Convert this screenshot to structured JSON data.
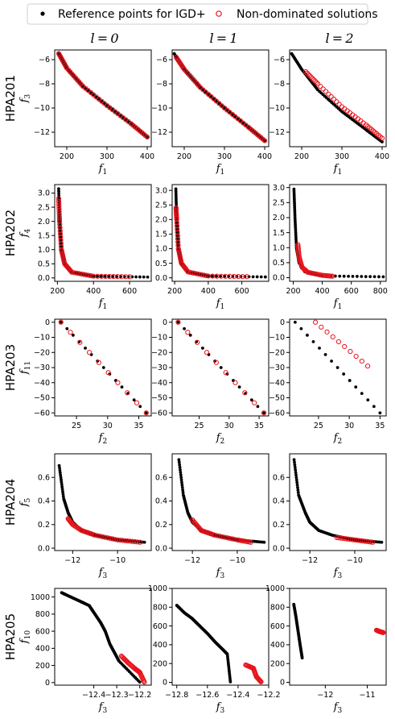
{
  "legend": {
    "items": [
      {
        "label": "Reference points for IGD+",
        "marker": "filled",
        "color": "#000000"
      },
      {
        "label": "Non-dominated solutions",
        "marker": "open",
        "color": "#e8141c"
      }
    ],
    "placement": "top-center"
  },
  "column_headers": [
    "l = 0",
    "l = 1",
    "l = 2"
  ],
  "colors": {
    "reference": "#000000",
    "solutions": "#e8141c"
  },
  "chart_data": [
    {
      "type": "scatter",
      "problem": "HPA201",
      "xlabel": "f1",
      "ylabel": "f3",
      "grid": false,
      "panels": [
        {
          "col": 0,
          "xlim": [
            170,
            410
          ],
          "ylim": [
            -13.2,
            -5.2
          ],
          "xticks": [
            200,
            300,
            400
          ],
          "yticks": [
            -6,
            -8,
            -10,
            -12
          ],
          "reference": {
            "x": [
              180,
              200,
              240,
              300,
              360,
              400
            ],
            "y": [
              -5.5,
              -6.7,
              -8.2,
              -9.8,
              -11.3,
              -12.4
            ]
          },
          "solutions": {
            "x": [
              180,
              200,
              240,
              300,
              360,
              400
            ],
            "y": [
              -5.5,
              -6.7,
              -8.2,
              -9.8,
              -11.3,
              -12.4
            ]
          }
        },
        {
          "col": 1,
          "xlim": [
            170,
            410
          ],
          "ylim": [
            -13.2,
            -5.2
          ],
          "xticks": [
            200,
            300,
            400
          ],
          "yticks": [
            -6,
            -8,
            -10,
            -12
          ],
          "reference": {
            "x": [
              175,
              200,
              240,
              300,
              360,
              400
            ],
            "y": [
              -5.5,
              -6.8,
              -8.3,
              -10.0,
              -11.6,
              -12.7
            ]
          },
          "solutions": {
            "x": [
              180,
              200,
              240,
              300,
              360,
              400
            ],
            "y": [
              -5.8,
              -6.8,
              -8.3,
              -10.0,
              -11.6,
              -12.7
            ]
          }
        },
        {
          "col": 2,
          "xlim": [
            170,
            410
          ],
          "ylim": [
            -13.2,
            -5.2
          ],
          "xticks": [
            200,
            300,
            400
          ],
          "yticks": [
            -6,
            -8,
            -10,
            -12
          ],
          "reference": {
            "x": [
              175,
              200,
              240,
              300,
              360,
              400
            ],
            "y": [
              -5.5,
              -6.8,
              -8.5,
              -10.3,
              -11.8,
              -12.8
            ]
          },
          "solutions": {
            "x": [
              210,
              240,
              300,
              360,
              400
            ],
            "y": [
              -7.0,
              -8.0,
              -9.9,
              -11.4,
              -12.5
            ]
          }
        }
      ]
    },
    {
      "type": "scatter",
      "problem": "HPA202",
      "xlabel": "f1",
      "ylabel": "f4",
      "grid": false,
      "panels": [
        {
          "col": 0,
          "xlim": [
            185,
            720
          ],
          "ylim": [
            -0.12,
            3.3
          ],
          "xticks": [
            200,
            400,
            600
          ],
          "yticks": [
            0.0,
            0.5,
            1.0,
            1.5,
            2.0,
            2.5,
            3.0
          ],
          "reference": {
            "x": [
              207,
              212,
              222,
              240,
              280,
              400,
              700
            ],
            "y": [
              3.15,
              2.0,
              1.0,
              0.5,
              0.2,
              0.06,
              0.03
            ]
          },
          "solutions": {
            "x": [
              207,
              212,
              222,
              240,
              280,
              400,
              600
            ],
            "y": [
              2.8,
              2.0,
              1.0,
              0.5,
              0.2,
              0.06,
              0.04
            ]
          }
        },
        {
          "col": 1,
          "xlim": [
            185,
            760
          ],
          "ylim": [
            -0.12,
            3.2
          ],
          "xticks": [
            200,
            400,
            600
          ],
          "yticks": [
            0.0,
            0.5,
            1.0,
            1.5,
            2.0,
            2.5,
            3.0
          ],
          "reference": {
            "x": [
              207,
              212,
              222,
              240,
              280,
              400,
              740
            ],
            "y": [
              3.05,
              2.0,
              1.0,
              0.5,
              0.2,
              0.06,
              0.03
            ]
          },
          "solutions": {
            "x": [
              208,
              212,
              222,
              240,
              280,
              400,
              630
            ],
            "y": [
              2.4,
              2.0,
              1.0,
              0.5,
              0.2,
              0.06,
              0.04
            ]
          }
        },
        {
          "col": 2,
          "xlim": [
            175,
            840
          ],
          "ylim": [
            -0.12,
            3.1
          ],
          "xticks": [
            200,
            400,
            600,
            800
          ],
          "yticks": [
            0.0,
            0.5,
            1.0,
            1.5,
            2.0,
            2.5,
            3.0
          ],
          "reference": {
            "x": [
              205,
              212,
              222,
              240,
              280,
              400,
              820
            ],
            "y": [
              2.95,
              2.0,
              1.0,
              0.5,
              0.2,
              0.06,
              0.03
            ]
          },
          "solutions": {
            "x": [
              232,
              240,
              260,
              300,
              400,
              470
            ],
            "y": [
              1.1,
              0.7,
              0.35,
              0.18,
              0.08,
              0.05
            ]
          }
        }
      ]
    },
    {
      "type": "scatter",
      "problem": "HPA203",
      "xlabel": "f2",
      "ylabel": "f11",
      "grid": false,
      "panels": [
        {
          "col": 0,
          "xlim": [
            21.5,
            37
          ],
          "ylim": [
            -62,
            2
          ],
          "xticks": [
            25,
            30,
            35
          ],
          "yticks": [
            0,
            -10,
            -20,
            -30,
            -40,
            -50,
            -60
          ],
          "reference": {
            "x": [
              22.5,
              36.2
            ],
            "y": [
              0,
              -60
            ]
          },
          "solutions": {
            "x": [
              22.5,
              36.2
            ],
            "y": [
              0,
              -60
            ]
          }
        },
        {
          "col": 1,
          "xlim": [
            20.5,
            36.6
          ],
          "ylim": [
            -62,
            2
          ],
          "xticks": [
            25,
            30,
            35
          ],
          "yticks": [
            0,
            -10,
            -20,
            -30,
            -40,
            -50,
            -60
          ],
          "reference": {
            "x": [
              21.5,
              35.8
            ],
            "y": [
              0,
              -60
            ]
          },
          "solutions": {
            "x": [
              21.5,
              35.8
            ],
            "y": [
              0,
              -60
            ]
          }
        },
        {
          "col": 2,
          "xlim": [
            20.3,
            36
          ],
          "ylim": [
            -62,
            2
          ],
          "xticks": [
            25,
            30,
            35
          ],
          "yticks": [
            0,
            -10,
            -20,
            -30,
            -40,
            -50,
            -60
          ],
          "reference": {
            "x": [
              21.2,
              35.0
            ],
            "y": [
              0,
              -60
            ]
          },
          "solutions": {
            "x": [
              24.5,
              33.0
            ],
            "y": [
              0,
              -29
            ]
          }
        }
      ]
    },
    {
      "type": "scatter",
      "problem": "HPA204",
      "xlabel": "f3",
      "ylabel": "f5",
      "grid": false,
      "panels": [
        {
          "col": 0,
          "xlim": [
            -12.8,
            -8.5
          ],
          "ylim": [
            -0.02,
            0.8
          ],
          "xticks": [
            -12,
            -10
          ],
          "yticks": [
            0.0,
            0.2,
            0.4,
            0.6
          ],
          "reference": {
            "x": [
              -12.6,
              -12.4,
              -12.2,
              -12.0,
              -11.6,
              -11.0,
              -10.0,
              -8.8
            ],
            "y": [
              0.7,
              0.42,
              0.3,
              0.22,
              0.15,
              0.11,
              0.07,
              0.05
            ]
          },
          "solutions": {
            "x": [
              -12.2,
              -12.0,
              -11.6,
              -11.0,
              -10.0,
              -9.0
            ],
            "y": [
              0.25,
              0.2,
              0.15,
              0.11,
              0.07,
              0.05
            ]
          }
        },
        {
          "col": 1,
          "xlim": [
            -12.9,
            -8.6
          ],
          "ylim": [
            -0.02,
            0.8
          ],
          "xticks": [
            -12,
            -10
          ],
          "yticks": [
            0.0,
            0.2,
            0.4,
            0.6
          ],
          "reference": {
            "x": [
              -12.6,
              -12.4,
              -12.2,
              -12.0,
              -11.6,
              -11.0,
              -10.0,
              -8.8
            ],
            "y": [
              0.75,
              0.45,
              0.3,
              0.22,
              0.15,
              0.11,
              0.07,
              0.05
            ]
          },
          "solutions": {
            "x": [
              -12.0,
              -11.6,
              -11.0,
              -10.0,
              -9.4
            ],
            "y": [
              0.24,
              0.15,
              0.11,
              0.07,
              0.05
            ]
          }
        },
        {
          "col": 2,
          "xlim": [
            -12.9,
            -8.6
          ],
          "ylim": [
            -0.02,
            0.8
          ],
          "xticks": [
            -12,
            -10
          ],
          "yticks": [
            0.0,
            0.2,
            0.4,
            0.6
          ],
          "reference": {
            "x": [
              -12.7,
              -12.5,
              -12.2,
              -12.0,
              -11.6,
              -11.0,
              -10.0,
              -8.8
            ],
            "y": [
              0.75,
              0.45,
              0.3,
              0.22,
              0.15,
              0.11,
              0.07,
              0.05
            ]
          },
          "solutions": {
            "x": [
              -10.8,
              -10.0,
              -9.2
            ],
            "y": [
              0.09,
              0.07,
              0.05
            ]
          }
        }
      ]
    },
    {
      "type": "scatter",
      "problem": "HPA205",
      "xlabel": "f3",
      "ylabel": "f10",
      "grid": false,
      "panels": [
        {
          "col": 0,
          "xlim": [
            -12.57,
            -12.15
          ],
          "ylim": [
            -30,
            1100
          ],
          "xticks": [
            -12.4,
            -12.3,
            -12.2
          ],
          "yticks": [
            0,
            200,
            400,
            600,
            800,
            1000
          ],
          "reference": {
            "x": [
              -12.54,
              -12.5,
              -12.46,
              -12.42,
              -12.4,
              -12.37,
              -12.35,
              -12.33,
              -12.31,
              -12.29,
              -12.2
            ],
            "y": [
              1050,
              1000,
              950,
              900,
              820,
              700,
              600,
              450,
              350,
              250,
              5
            ]
          },
          "solutions": {
            "x": [
              -12.28,
              -12.25,
              -12.22,
              -12.2,
              -12.18
            ],
            "y": [
              310,
              230,
              160,
              120,
              5
            ]
          }
        },
        {
          "col": 1,
          "xlim": [
            -12.83,
            -12.2
          ],
          "ylim": [
            -30,
            1000
          ],
          "xticks": [
            -12.8,
            -12.6,
            -12.4,
            -12.2
          ],
          "yticks": [
            0,
            200,
            400,
            600,
            800,
            1000
          ],
          "reference": {
            "x": [
              -12.8,
              -12.75,
              -12.7,
              -12.65,
              -12.6,
              -12.55,
              -12.5,
              -12.47,
              -12.45
            ],
            "y": [
              820,
              740,
              680,
              600,
              520,
              430,
              350,
              300,
              5
            ]
          },
          "solutions": {
            "x": [
              -12.35,
              -12.3,
              -12.28,
              -12.25
            ],
            "y": [
              185,
              150,
              60,
              5
            ]
          }
        },
        {
          "col": 2,
          "xlim": [
            -12.85,
            -10.55
          ],
          "ylim": [
            -30,
            1000
          ],
          "xticks": [
            -12,
            -11
          ],
          "yticks": [
            0,
            200,
            400,
            600,
            800,
            1000
          ],
          "reference": {
            "x": [
              -12.75,
              -12.7,
              -12.65,
              -12.6,
              -12.55
            ],
            "y": [
              830,
              700,
              550,
              400,
              260
            ]
          },
          "solutions": {
            "x": [
              -10.78,
              -10.7,
              -10.62
            ],
            "y": [
              555,
              540,
              530
            ]
          }
        }
      ]
    }
  ]
}
